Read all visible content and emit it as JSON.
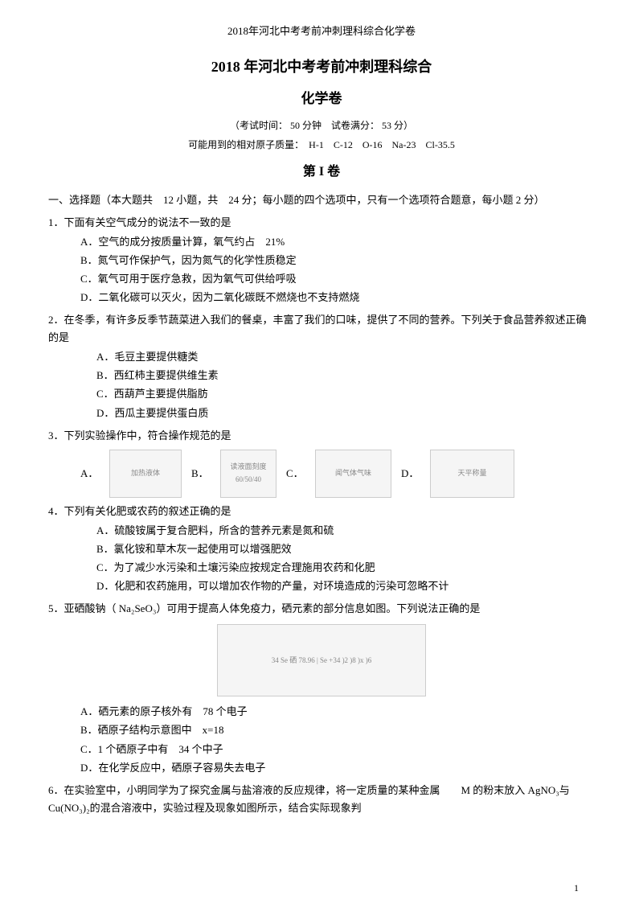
{
  "header": "2018年河北中考考前冲刺理科综合化学卷",
  "mainTitle": "2018 年河北中考考前冲刺理科综合",
  "subTitle": "化学卷",
  "examInfo": "（考试时间： 50 分钟　试卷满分： 53 分）",
  "atomicMass": "可能用到的相对原子质量：　H-1　C-12　O-16　Na-23　Cl-35.5",
  "sectionTitle": "第 I 卷",
  "instructions": "一、选择题（本大题共　12 小题，共　24 分；每小题的四个选项中，只有一个选项符合题意，每小题 2 分）",
  "q1": {
    "stem": "1．下面有关空气成分的说法不一致的是",
    "A": "A．空气的成分按质量计算，氧气约占　21%",
    "B": "B．氮气可作保护气，因为氮气的化学性质稳定",
    "C": "C．氧气可用于医疗急救，因为氧气可供给呼吸",
    "D": "D．二氧化碳可以灭火，因为二氧化碳既不燃烧也不支持燃烧"
  },
  "q2": {
    "stem": "2．在冬季，有许多反季节蔬菜进入我们的餐桌，丰富了我们的口味，提供了不同的营养。下列关于食品营养叙述正确的是",
    "A": "A．毛豆主要提供糖类",
    "B": "B．西红柿主要提供维生素",
    "C": "C．西葫芦主要提供脂肪",
    "D": "D．西瓜主要提供蛋白质"
  },
  "q3": {
    "stem": "3．下列实验操作中，符合操作规范的是",
    "labelA": "A．",
    "labelB": "B．",
    "labelC": "C．",
    "labelD": "D．",
    "imgA": "加热液体",
    "imgB": "读液面刻度 60/50/40",
    "imgC": "闻气体气味",
    "imgD": "天平称量"
  },
  "q4": {
    "stem": "4．下列有关化肥或农药的叙述正确的是",
    "A": "A．硫酸铵属于复合肥料，所含的营养元素是氮和硫",
    "B": "B．氯化铵和草木灰一起使用可以增强肥效",
    "C": "C．为了减少水污染和土壤污染应按规定合理施用农药和化肥",
    "D": "D．化肥和农药施用，可以增加农作物的产量，对环境造成的污染可忽略不计"
  },
  "q5": {
    "stem": "5．亚硒酸钠（ Na₂SeO₃）可用于提高人体免疫力，硒元素的部分信息如图。下列说法正确的是",
    "img": "34 Se 硒 78.96  |  Se +34 )2 )8 )x )6",
    "A": "A．硒元素的原子核外有　78 个电子",
    "B": "B．硒原子结构示意图中　x=18",
    "C": "C．1 个硒原子中有　34 个中子",
    "D": "D．在化学反应中，硒原子容易失去电子"
  },
  "q6": {
    "stem": "6．在实验室中，小明同学为了探究金属与盐溶液的反应规律，将一定质量的某种金属　　M 的粉末放入 AgNO₃与 Cu(NO₃)₂的混合溶液中，实验过程及现象如图所示，结合实际现象判"
  },
  "pageNum": "1"
}
